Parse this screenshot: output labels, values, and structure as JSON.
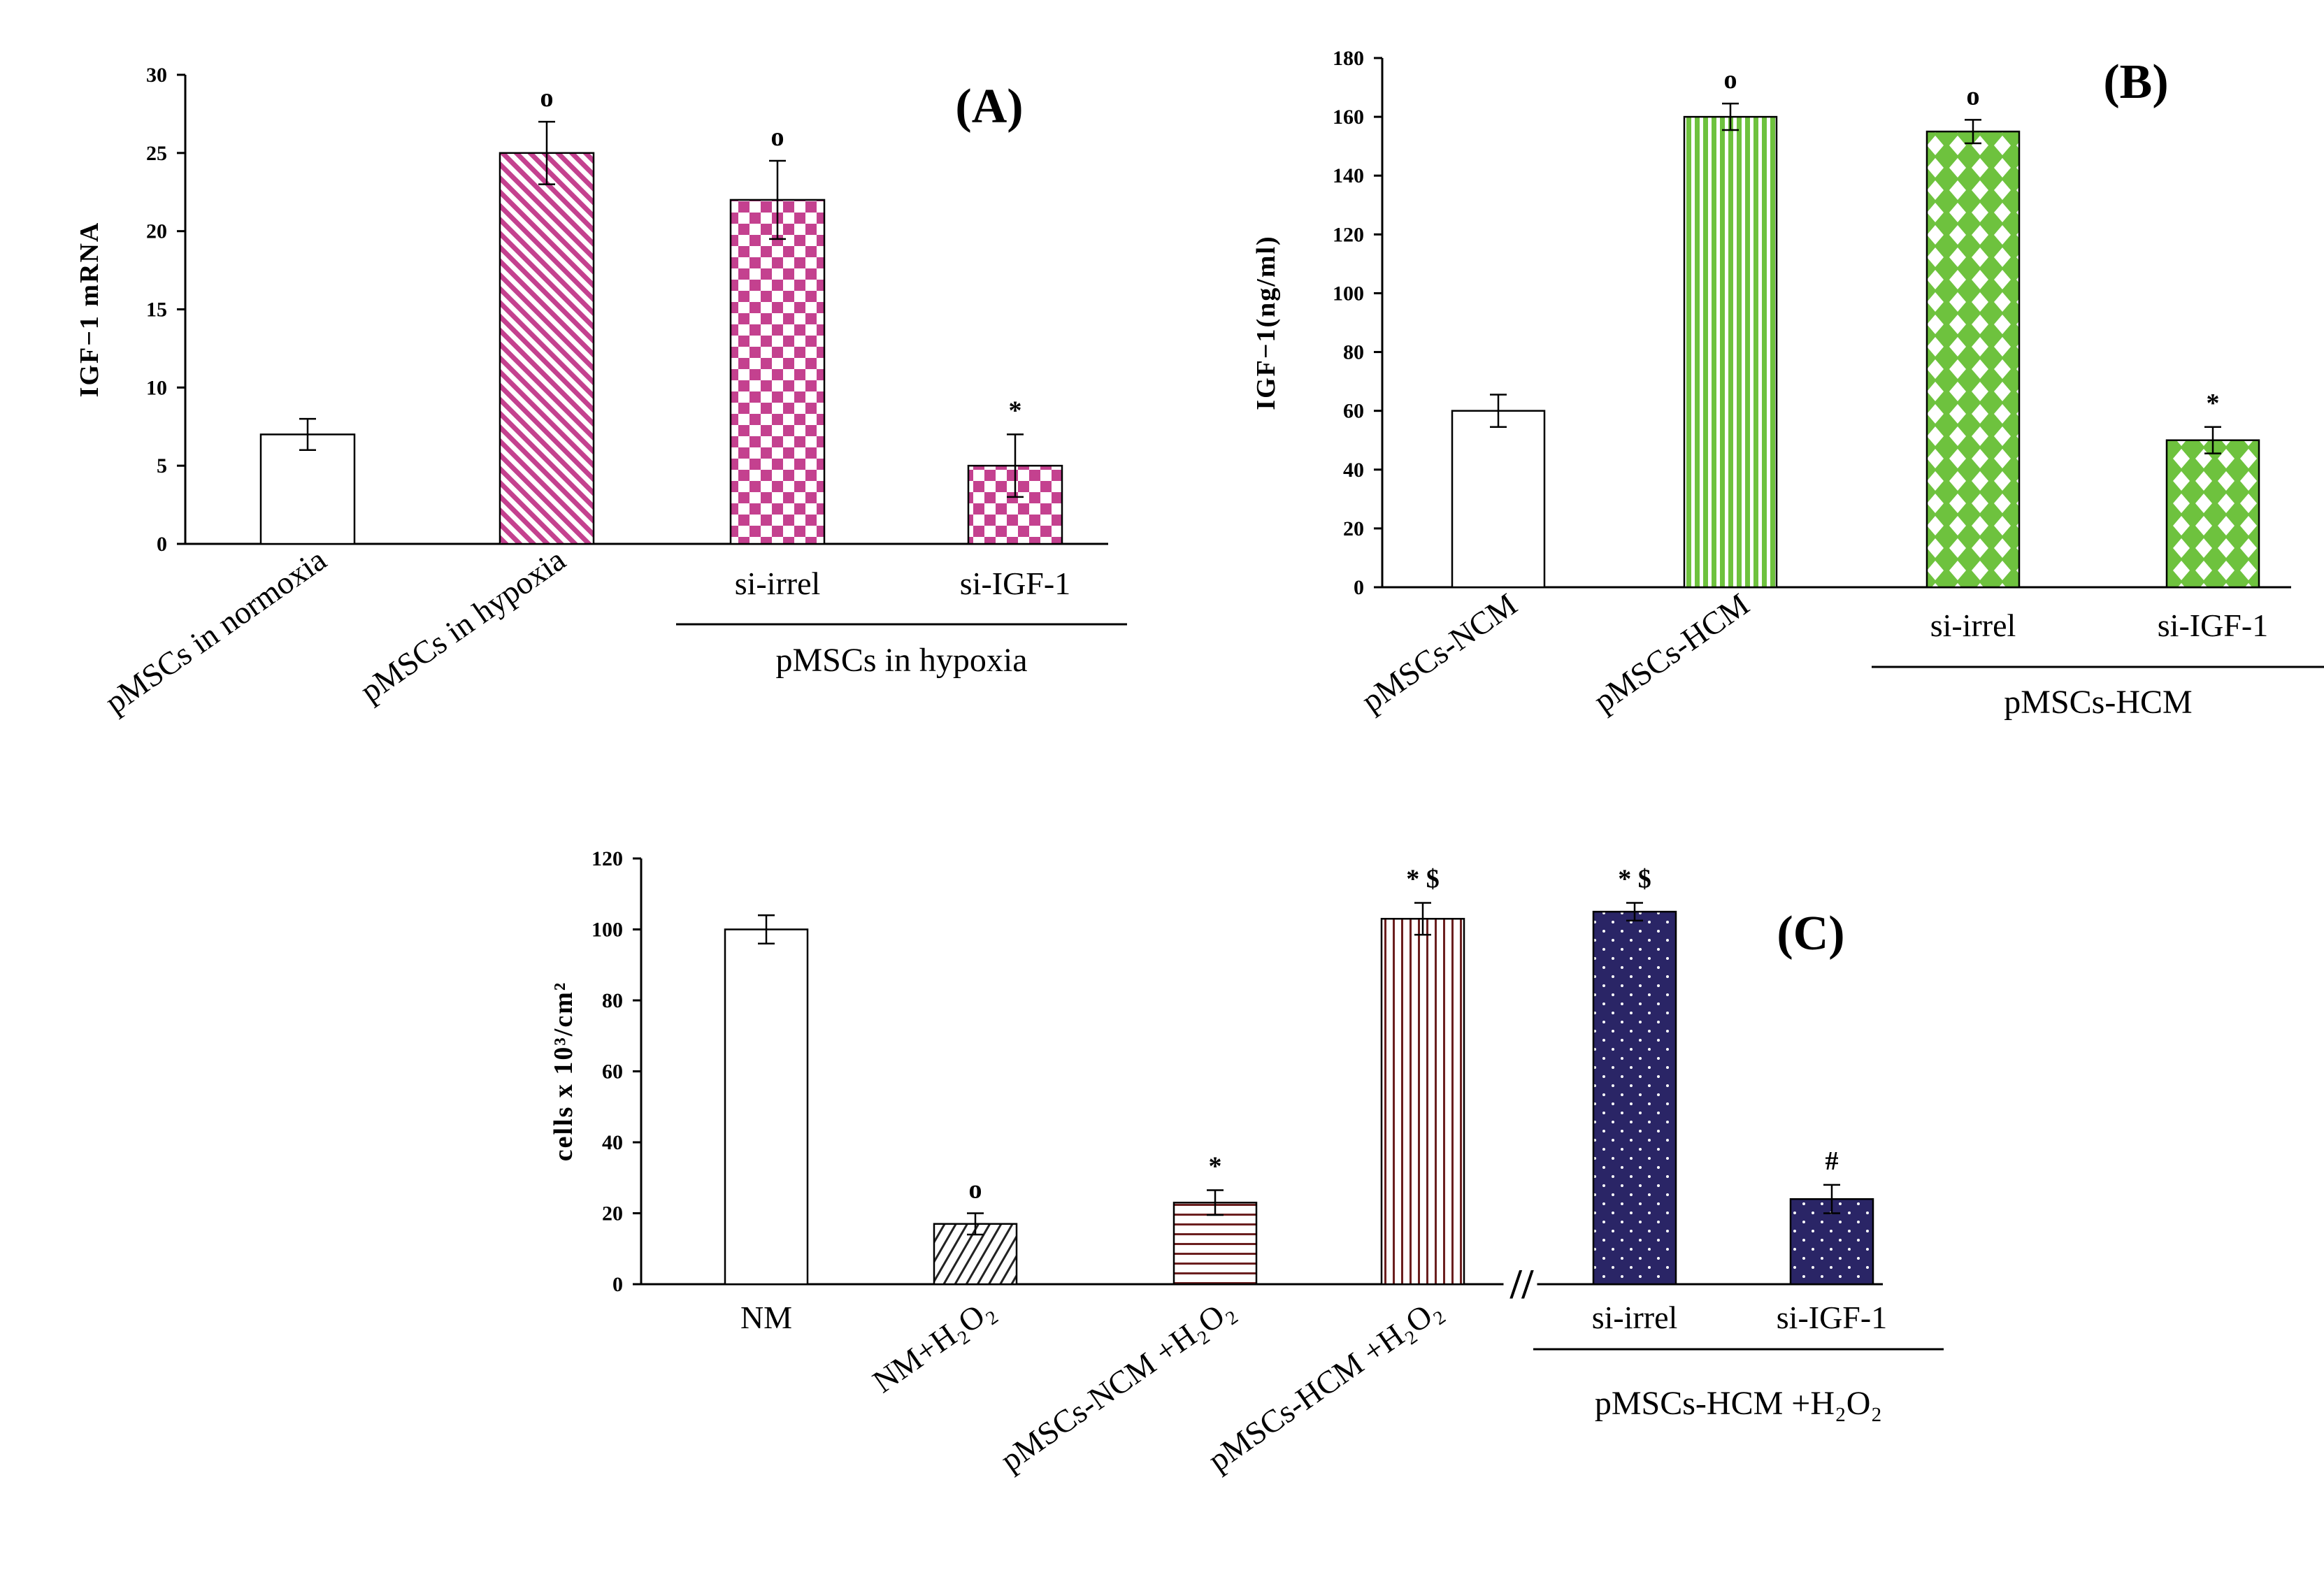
{
  "colors": {
    "panel_a_fill": "#c4418f",
    "panel_b_fill": "#6ec23e",
    "panel_c_hatch": "#6b1f1f",
    "panel_c_navy": "#2a2566",
    "axis": "#000000"
  },
  "chart_data": [
    {
      "type": "bar",
      "panel_label": "(A)",
      "ylabel": "IGF−1 mRNA",
      "ylim": [
        0,
        30
      ],
      "yticks": [
        0,
        5,
        10,
        15,
        20,
        25,
        30
      ],
      "categories": [
        "pMSCs in normoxia",
        "pMSCs in hypoxia",
        "si-irrel",
        "si-IGF-1"
      ],
      "values": [
        7,
        25,
        22,
        5
      ],
      "errors": [
        1,
        2,
        2.5,
        2
      ],
      "significance": [
        "",
        "o",
        "o",
        "*"
      ],
      "patterns": [
        "none",
        "diagonal-stripes",
        "checker",
        "checker"
      ],
      "group_label": "pMSCs in hypoxia",
      "grid": false
    },
    {
      "type": "bar",
      "panel_label": "(B)",
      "ylabel": "IGF−1(ng/ml)",
      "ylim": [
        0,
        180
      ],
      "yticks": [
        0,
        20,
        40,
        60,
        80,
        100,
        120,
        140,
        160,
        180
      ],
      "categories": [
        "pMSCs-NCM",
        "pMSCs-HCM",
        "si-irrel",
        "si-IGF-1"
      ],
      "values": [
        60,
        160,
        155,
        50
      ],
      "errors": [
        5.5,
        4.5,
        4,
        4.5
      ],
      "significance": [
        "",
        "o",
        "o",
        "*"
      ],
      "patterns": [
        "none",
        "vertical-stripes",
        "diamonds",
        "diamonds"
      ],
      "group_label": "pMSCs-HCM",
      "grid": false
    },
    {
      "type": "bar",
      "panel_label": "(C)",
      "ylabel": "cells x 10³/cm²",
      "ylim": [
        0,
        120
      ],
      "yticks": [
        0,
        20,
        40,
        60,
        80,
        100,
        120
      ],
      "categories": [
        "NM",
        "NM+H₂O₂",
        "pMSCs-NCM +H₂O₂",
        "pMSCs-HCM +H₂O₂",
        "si-irrel",
        "si-IGF-1"
      ],
      "values": [
        100,
        17,
        23,
        103,
        105,
        24
      ],
      "errors": [
        4,
        3,
        3.5,
        4.5,
        2.5,
        4
      ],
      "significance": [
        "",
        "o",
        "*",
        "* $",
        "* $",
        "#"
      ],
      "patterns": [
        "none",
        "backslash",
        "horizontal-stripes",
        "vertical-stripes",
        "navy-dots",
        "navy-dots"
      ],
      "group_label": "pMSCs-HCM +H₂O₂",
      "axis_break": "//",
      "grid": false
    }
  ]
}
